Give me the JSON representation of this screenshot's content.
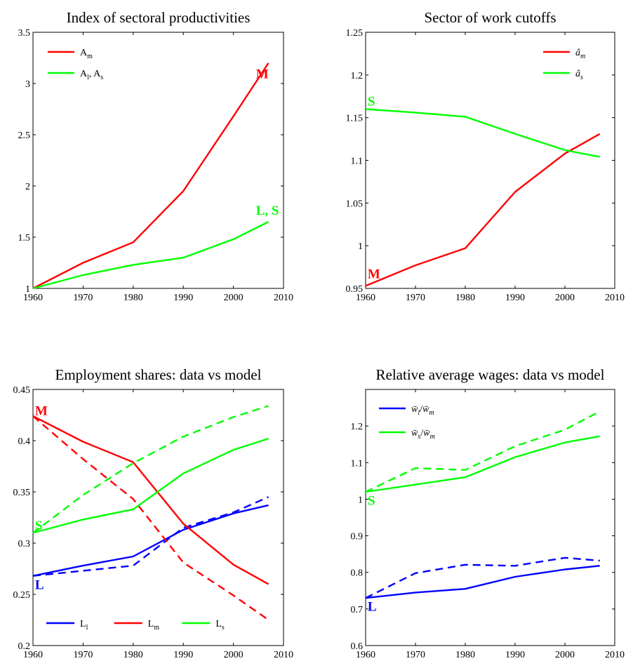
{
  "chart_data": [
    {
      "type": "line",
      "title": "Index of sectoral productivities",
      "xlabel": "",
      "ylabel": "",
      "xlim": [
        1960,
        2010
      ],
      "ylim": [
        1,
        3.5
      ],
      "x_ticks": [
        1960,
        1970,
        1980,
        1990,
        2000,
        2010
      ],
      "y_ticks": [
        1,
        1.5,
        2,
        2.5,
        3,
        3.5
      ],
      "y_tick_labels": [
        "1",
        "1.5",
        "2",
        "2.5",
        "3",
        "3.5"
      ],
      "x": [
        1960,
        1970,
        1980,
        1990,
        2000,
        2007
      ],
      "series": [
        {
          "name": "A_m",
          "legend": {
            "base": "A",
            "sub": "m"
          },
          "color": "#ff0000",
          "style": "solid",
          "values": [
            1.0,
            1.25,
            1.45,
            1.95,
            2.68,
            3.2
          ]
        },
        {
          "name": "A_l, A_s",
          "legend": {
            "base": "A",
            "sub": "l",
            "sep": ", ",
            "base2": "A",
            "sub2": "s"
          },
          "color": "#00ff00",
          "style": "solid",
          "values": [
            1.0,
            1.13,
            1.23,
            1.3,
            1.48,
            1.65
          ]
        }
      ],
      "legend_position": "top-left",
      "annotations": [
        {
          "text": "M",
          "color": "#ff0000",
          "x": 2004.5,
          "y": 3.05
        },
        {
          "text": "L, S",
          "color": "#00ff00",
          "x": 2004.5,
          "y": 1.72
        }
      ]
    },
    {
      "type": "line",
      "title": "Sector of work cutoffs",
      "xlabel": "",
      "ylabel": "",
      "xlim": [
        1960,
        2010
      ],
      "ylim": [
        0.95,
        1.25
      ],
      "x_ticks": [
        1960,
        1970,
        1980,
        1990,
        2000,
        2010
      ],
      "y_ticks": [
        0.95,
        1,
        1.05,
        1.1,
        1.15,
        1.2,
        1.25
      ],
      "y_tick_labels": [
        "0.95",
        "1",
        "1.05",
        "1.1",
        "1.15",
        "1.2",
        "1.25"
      ],
      "x": [
        1960,
        1970,
        1980,
        1990,
        2000,
        2007
      ],
      "series": [
        {
          "name": "â_m",
          "legend": {
            "base": "â",
            "sub": "m",
            "italic": true
          },
          "color": "#ff0000",
          "style": "solid",
          "values": [
            0.953,
            0.977,
            0.997,
            1.063,
            1.108,
            1.131
          ]
        },
        {
          "name": "â_s",
          "legend": {
            "base": "â",
            "sub": "s",
            "italic": true
          },
          "color": "#00ff00",
          "style": "solid",
          "values": [
            1.16,
            1.156,
            1.151,
            1.131,
            1.112,
            1.104
          ]
        }
      ],
      "legend_position": "top-right",
      "annotations": [
        {
          "text": "S",
          "color": "#00ff00",
          "x": 1960.4,
          "y": 1.164
        },
        {
          "text": "M",
          "color": "#ff0000",
          "x": 1960.4,
          "y": 0.962
        }
      ]
    },
    {
      "type": "line",
      "title": "Employment shares: data vs model",
      "xlabel": "",
      "ylabel": "",
      "xlim": [
        1960,
        2010
      ],
      "ylim": [
        0.2,
        0.45
      ],
      "x_ticks": [
        1960,
        1970,
        1980,
        1990,
        2000,
        2010
      ],
      "y_ticks": [
        0.2,
        0.25,
        0.3,
        0.35,
        0.4,
        0.45
      ],
      "y_tick_labels": [
        "0.2",
        "0.25",
        "0.3",
        "0.35",
        "0.4",
        "0.45"
      ],
      "x": [
        1960,
        1970,
        1980,
        1990,
        2000,
        2007
      ],
      "series": [
        {
          "name": "L_l",
          "legend": {
            "base": "L",
            "sub": "l"
          },
          "color": "#0000ff",
          "style": "solid",
          "values": [
            0.268,
            0.278,
            0.287,
            0.313,
            0.329,
            0.337
          ]
        },
        {
          "name": "L_l (model)",
          "color": "#0000ff",
          "style": "dashed",
          "values": [
            0.268,
            0.273,
            0.278,
            0.315,
            0.33,
            0.345
          ]
        },
        {
          "name": "L_m",
          "legend": {
            "base": "L",
            "sub": "m"
          },
          "color": "#ff0000",
          "style": "solid",
          "values": [
            0.424,
            0.399,
            0.379,
            0.319,
            0.279,
            0.26
          ]
        },
        {
          "name": "L_m (model)",
          "color": "#ff0000",
          "style": "dashed",
          "values": [
            0.424,
            0.382,
            0.343,
            0.281,
            0.249,
            0.225
          ]
        },
        {
          "name": "L_s",
          "legend": {
            "base": "L",
            "sub": "s"
          },
          "color": "#00ff00",
          "style": "solid",
          "values": [
            0.31,
            0.323,
            0.333,
            0.368,
            0.391,
            0.402
          ]
        },
        {
          "name": "L_s (model)",
          "color": "#00ff00",
          "style": "dashed",
          "values": [
            0.31,
            0.347,
            0.378,
            0.404,
            0.423,
            0.434
          ]
        }
      ],
      "legend_position": "bottom",
      "annotations": [
        {
          "text": "M",
          "color": "#ff0000",
          "x": 1960.4,
          "y": 0.425
        },
        {
          "text": "S",
          "color": "#00ff00",
          "x": 1960.4,
          "y": 0.313
        },
        {
          "text": "L",
          "color": "#0000ff",
          "x": 1960.4,
          "y": 0.255
        }
      ]
    },
    {
      "type": "line",
      "title": "Relative average wages: data vs model",
      "xlabel": "",
      "ylabel": "",
      "xlim": [
        1960,
        2010
      ],
      "ylim": [
        0.6,
        1.3
      ],
      "x_ticks": [
        1960,
        1970,
        1980,
        1990,
        2000,
        2010
      ],
      "y_ticks": [
        0.6,
        0.7,
        0.8,
        0.9,
        1,
        1.1,
        1.2
      ],
      "y_tick_labels": [
        "0.6",
        "0.7",
        "0.8",
        "0.9",
        "1",
        "1.1",
        "1.2"
      ],
      "x": [
        1960,
        1970,
        1980,
        1990,
        2000,
        2007
      ],
      "series": [
        {
          "name": "w̄_l / w̄_m",
          "legend": {
            "base": "w̄",
            "sub": "l",
            "sep": "/",
            "base2": "w̄",
            "sub2": "m",
            "italic": true
          },
          "color": "#0000ff",
          "style": "solid",
          "values": [
            0.73,
            0.745,
            0.755,
            0.788,
            0.808,
            0.818
          ]
        },
        {
          "name": "w̄_l / w̄_m (model)",
          "color": "#0000ff",
          "style": "dashed",
          "values": [
            0.73,
            0.798,
            0.821,
            0.818,
            0.84,
            0.832
          ]
        },
        {
          "name": "w̄_s / w̄_m",
          "legend": {
            "base": "w̄",
            "sub": "s",
            "sep": "/",
            "base2": "w̄",
            "sub2": "m",
            "italic": true
          },
          "color": "#00ff00",
          "style": "solid",
          "values": [
            1.02,
            1.04,
            1.06,
            1.115,
            1.155,
            1.172
          ]
        },
        {
          "name": "w̄_s / w̄_m (model)",
          "color": "#00ff00",
          "style": "dashed",
          "values": [
            1.02,
            1.085,
            1.08,
            1.145,
            1.19,
            1.24
          ]
        }
      ],
      "legend_position": "top-left",
      "annotations": [
        {
          "text": "S",
          "color": "#00ff00",
          "x": 1960.4,
          "y": 0.985
        },
        {
          "text": "L",
          "color": "#0000ff",
          "x": 1960.4,
          "y": 0.695
        }
      ]
    }
  ]
}
